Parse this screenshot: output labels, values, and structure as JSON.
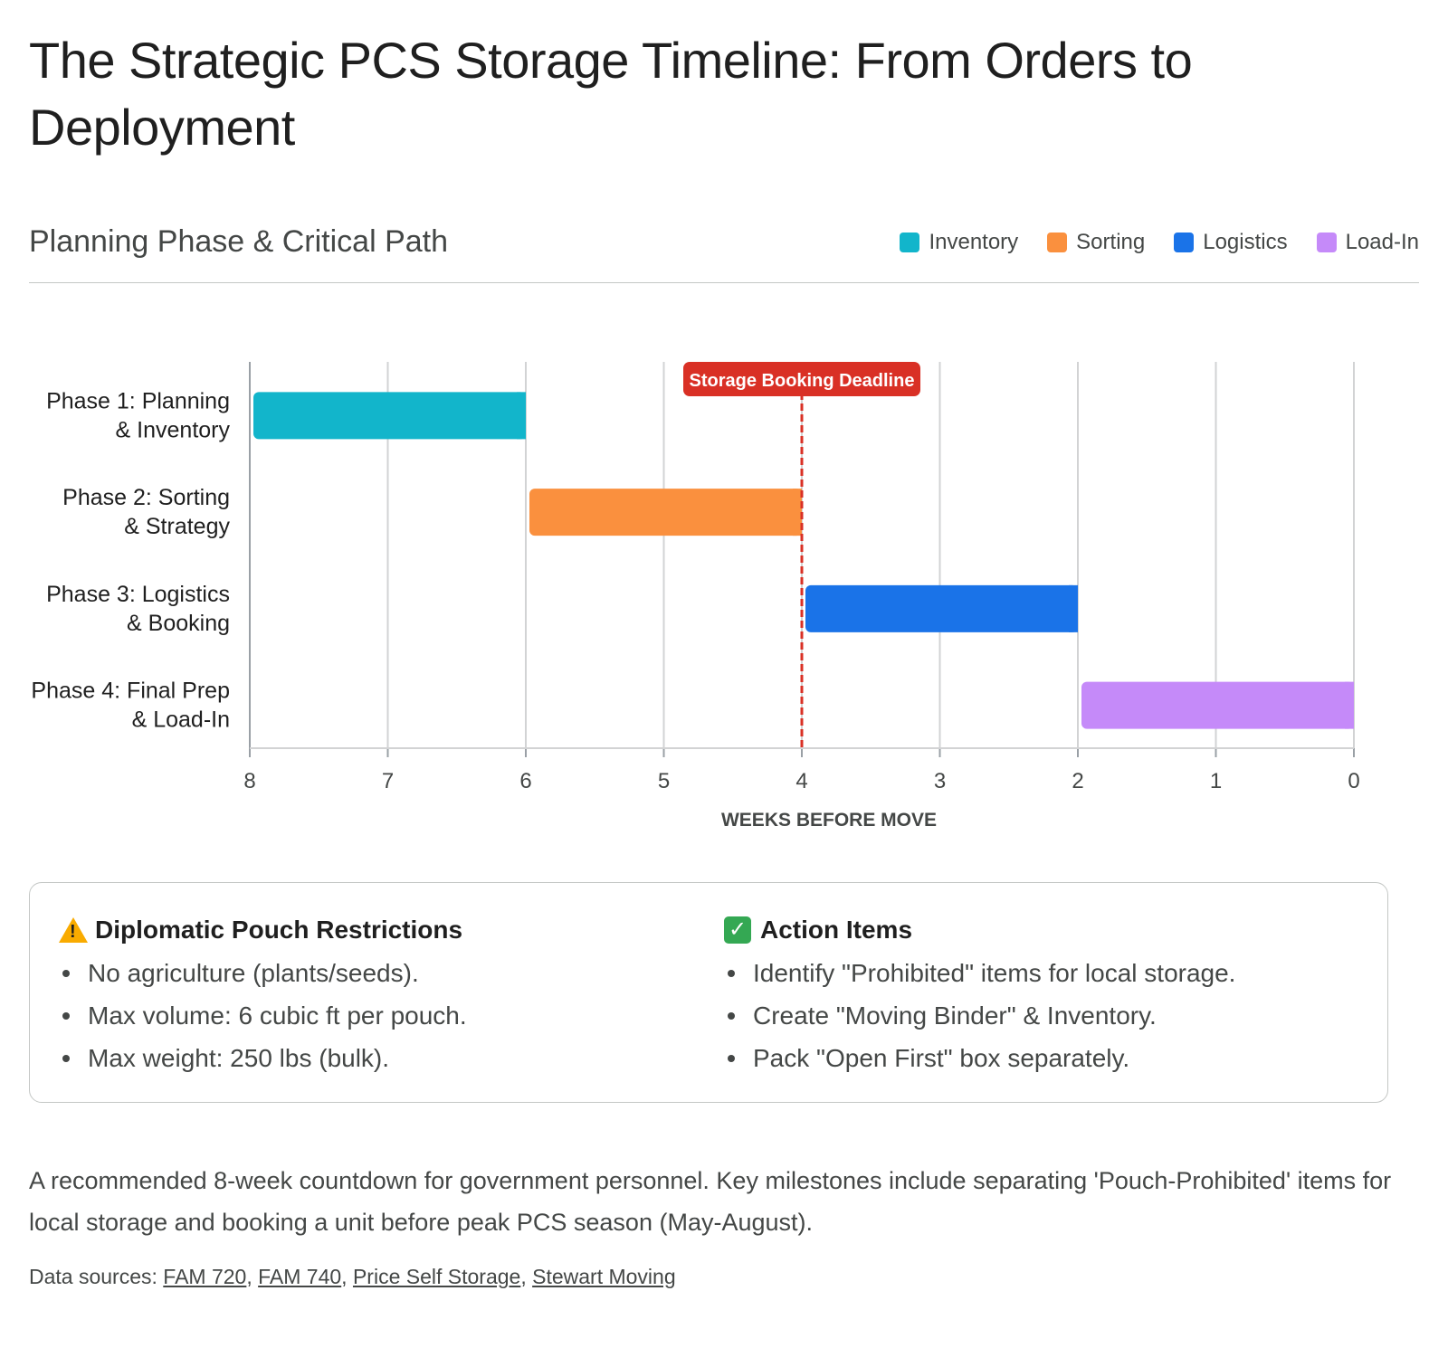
{
  "title": "The Strategic PCS Storage Timeline: From Orders to Deployment",
  "subtitle": "Planning Phase & Critical Path",
  "legend": [
    {
      "label": "Inventory",
      "color": "#12b5cb"
    },
    {
      "label": "Sorting",
      "color": "#fa903e"
    },
    {
      "label": "Logistics",
      "color": "#1a73e8"
    },
    {
      "label": "Load-In",
      "color": "#c58af9"
    }
  ],
  "chart_data": {
    "type": "bar",
    "orientation": "horizontal-gantt",
    "xlabel": "WEEKS BEFORE MOVE",
    "xlim": [
      8,
      0
    ],
    "x_ticks": [
      "8",
      "7",
      "6",
      "5",
      "4",
      "3",
      "2",
      "1",
      "0"
    ],
    "grid": true,
    "legend_position": "top-right",
    "tasks": [
      {
        "label_line1": "Phase 1: Planning",
        "label_line2": "& Inventory",
        "start": 8,
        "end": 6,
        "color": "#12b5cb"
      },
      {
        "label_line1": "Phase 2: Sorting",
        "label_line2": "& Strategy",
        "start": 6,
        "end": 4,
        "color": "#fa903e"
      },
      {
        "label_line1": "Phase 3: Logistics",
        "label_line2": "& Booking",
        "start": 4,
        "end": 2,
        "color": "#1a73e8"
      },
      {
        "label_line1": "Phase 4: Final Prep",
        "label_line2": "& Load-In",
        "start": 2,
        "end": 0,
        "color": "#c58af9"
      }
    ],
    "annotation": {
      "label": "Storage Booking Deadline",
      "x": 4,
      "color": "#d93025"
    }
  },
  "restrictions": {
    "heading": "Diplomatic Pouch Restrictions",
    "items": [
      "No agriculture (plants/seeds).",
      "Max volume: 6 cubic ft per pouch.",
      "Max weight: 250 lbs (bulk)."
    ]
  },
  "actions": {
    "heading": "Action Items",
    "items": [
      "Identify \"Prohibited\" items for local storage.",
      "Create \"Moving Binder\" & Inventory.",
      "Pack \"Open First\" box separately."
    ]
  },
  "description": "A recommended 8-week countdown for government personnel. Key milestones include separating 'Pouch-Prohibited' items for local storage and booking a unit before peak PCS season (May-August).",
  "sources": {
    "prefix": "Data sources:",
    "links": [
      "FAM 720",
      "FAM 740",
      "Price Self Storage",
      "Stewart Moving"
    ]
  }
}
